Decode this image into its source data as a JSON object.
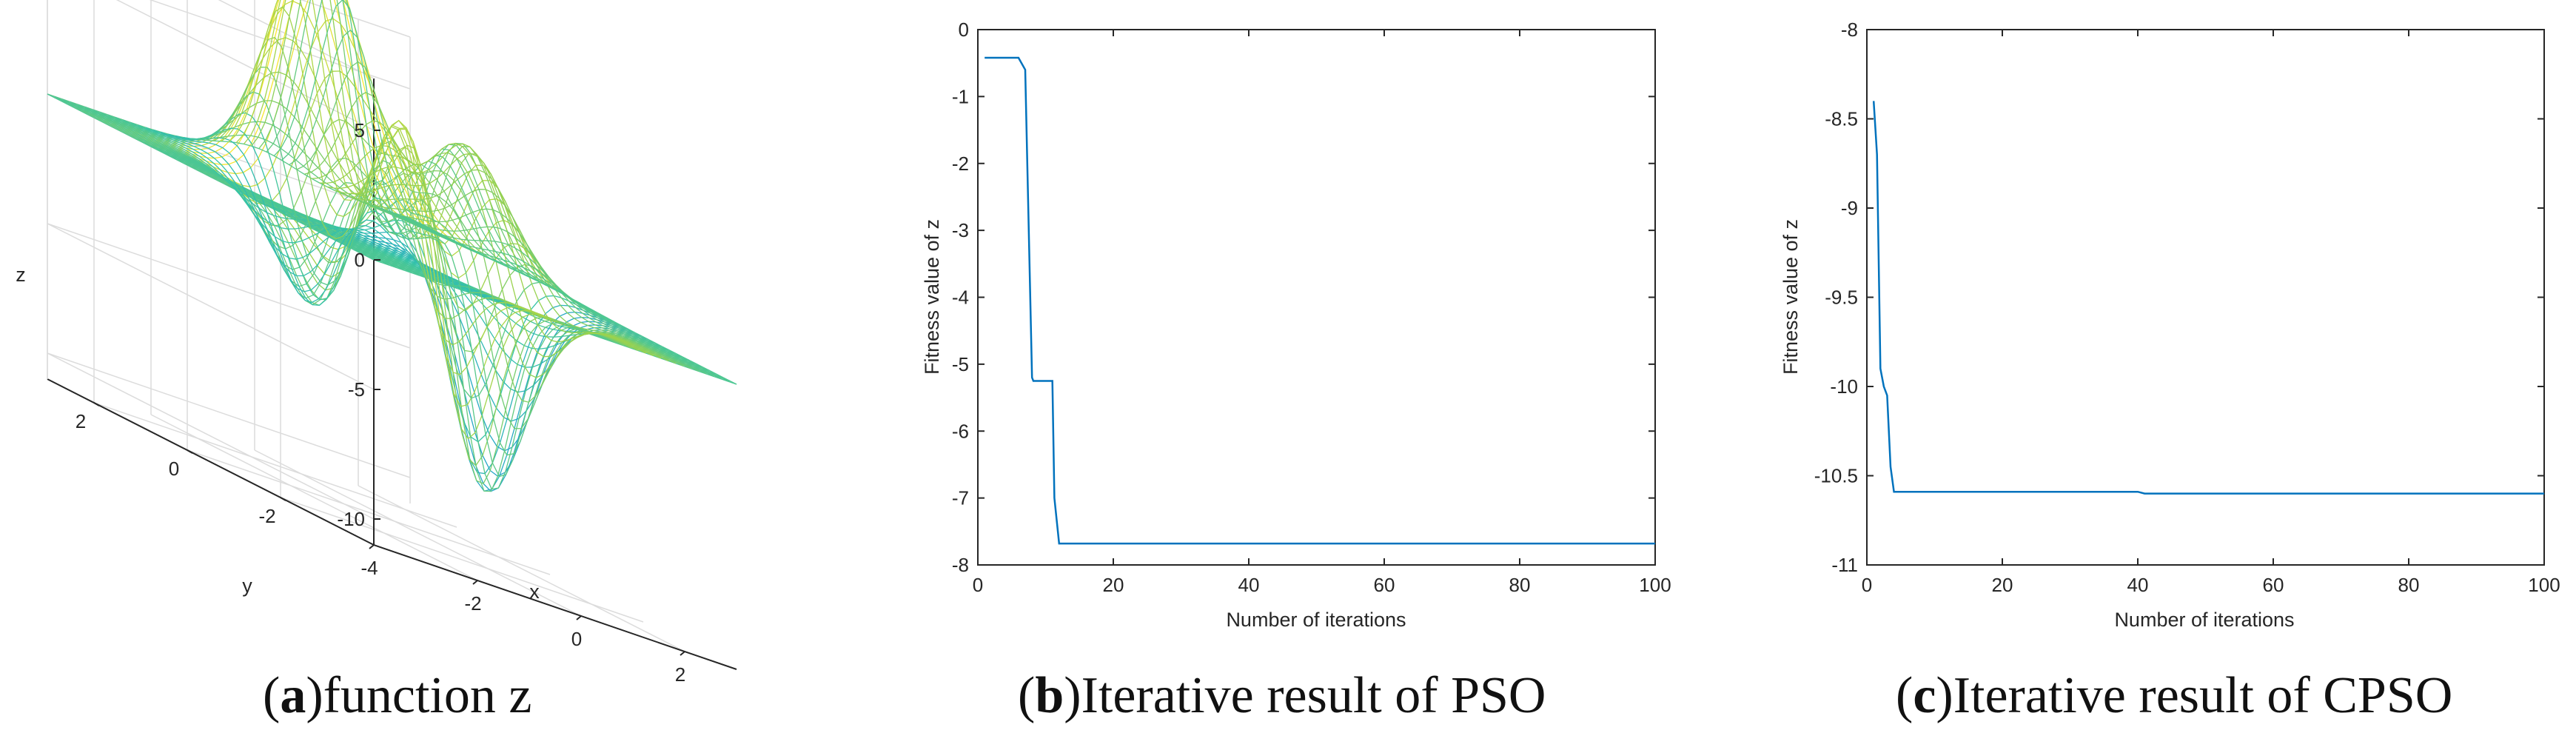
{
  "chart_data": [
    {
      "type": "surface",
      "title": "",
      "xlabel": "x",
      "ylabel": "y",
      "zlabel": "z",
      "xlim": [
        -4,
        3
      ],
      "ylim": [
        -4,
        3
      ],
      "zlim": [
        -11,
        7
      ],
      "x_ticks": [
        -4,
        -2,
        0,
        2
      ],
      "y_ticks": [
        -2,
        0,
        2
      ],
      "z_ticks": [
        -10,
        -5,
        0,
        5
      ],
      "x_tick_labels": [
        "-4",
        "-2",
        "0",
        "2"
      ],
      "y_tick_labels": [
        "-2",
        "0",
        "2"
      ],
      "z_tick_labels": [
        "-10",
        "-5",
        "0",
        "5"
      ],
      "colormap": [
        "#3e26a8",
        "#1e96d9",
        "#35c3a8",
        "#9bd24d",
        "#f9e731"
      ],
      "caption_letter": "a",
      "caption_text": "function z"
    },
    {
      "type": "line",
      "title": "",
      "xlabel": "Number of iterations",
      "ylabel": "Fitness value of z",
      "xlim": [
        0,
        100
      ],
      "ylim": [
        -8,
        0
      ],
      "x_ticks": [
        0,
        20,
        40,
        60,
        80,
        100
      ],
      "y_ticks": [
        0,
        -1,
        -2,
        -3,
        -4,
        -5,
        -6,
        -7,
        -8
      ],
      "x_tick_labels": [
        "0",
        "20",
        "40",
        "60",
        "80",
        "100"
      ],
      "y_tick_labels": [
        "0",
        "-1",
        "-2",
        "-3",
        "-4",
        "-5",
        "-6",
        "-7",
        "-8"
      ],
      "series": [
        {
          "name": "PSO",
          "color": "#0072bd",
          "x": [
            1,
            6,
            7,
            8,
            8.2,
            11,
            11.3,
            12,
            100
          ],
          "y": [
            -0.42,
            -0.42,
            -0.6,
            -5.2,
            -5.25,
            -5.25,
            -7.0,
            -7.68,
            -7.68
          ]
        }
      ],
      "caption_letter": "b",
      "caption_text": "Iterative result of PSO"
    },
    {
      "type": "line",
      "title": "",
      "xlabel": "Number of iterations",
      "ylabel": "Fitness value of z",
      "xlim": [
        0,
        100
      ],
      "ylim": [
        -11,
        -8
      ],
      "x_ticks": [
        0,
        20,
        40,
        60,
        80,
        100
      ],
      "y_ticks": [
        -8,
        -8.5,
        -9,
        -9.5,
        -10,
        -10.5,
        -11
      ],
      "x_tick_labels": [
        "0",
        "20",
        "40",
        "60",
        "80",
        "100"
      ],
      "y_tick_labels": [
        "-8",
        "-8.5",
        "-9",
        "-9.5",
        "-10",
        "-10.5",
        "-11"
      ],
      "series": [
        {
          "name": "CPSO",
          "color": "#0072bd",
          "x": [
            1,
            1.5,
            2,
            2.5,
            3,
            3.5,
            4,
            20,
            40,
            41,
            100
          ],
          "y": [
            -8.4,
            -8.7,
            -9.9,
            -10.0,
            -10.05,
            -10.45,
            -10.59,
            -10.59,
            -10.59,
            -10.6,
            -10.6
          ]
        }
      ],
      "caption_letter": "c",
      "caption_text": "Iterative result of CPSO"
    }
  ]
}
